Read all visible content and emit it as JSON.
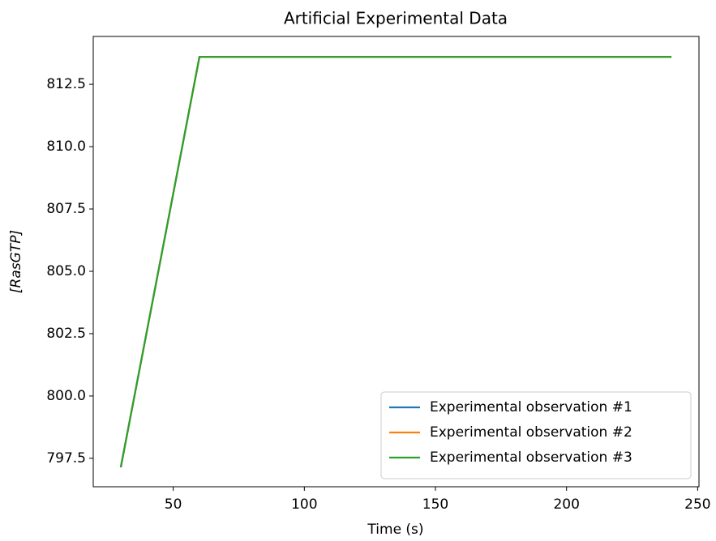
{
  "chart_data": {
    "type": "line",
    "title": "Artificial Experimental Data",
    "x_label": "Time (s)",
    "y_label": "[RasGTP]",
    "x": [
      30,
      60,
      90,
      120,
      150,
      180,
      210,
      240
    ],
    "series": [
      {
        "name": "Experimental observation #1",
        "color": "#1f77b4",
        "values": [
          797.14,
          813.6,
          813.6,
          813.6,
          813.6,
          813.6,
          813.6,
          813.6
        ]
      },
      {
        "name": "Experimental observation #2",
        "color": "#ff7f0e",
        "values": [
          797.14,
          813.6,
          813.6,
          813.6,
          813.6,
          813.6,
          813.6,
          813.6
        ]
      },
      {
        "name": "Experimental observation #3",
        "color": "#2ca02c",
        "values": [
          797.14,
          813.6,
          813.6,
          813.6,
          813.6,
          813.6,
          813.6,
          813.6
        ]
      }
    ],
    "xlim": [
      19.5,
      250.5
    ],
    "xticks": [
      50,
      100,
      150,
      200,
      250
    ],
    "ylim": [
      796.36,
      814.42
    ],
    "yticks": [
      797.5,
      {
        "value": 800,
        "label": "800.0"
      },
      802.5,
      {
        "value": 805,
        "label": "805.0"
      },
      807.5,
      {
        "value": 810,
        "label": "810.0"
      },
      812.5
    ],
    "legend": "lower right"
  }
}
